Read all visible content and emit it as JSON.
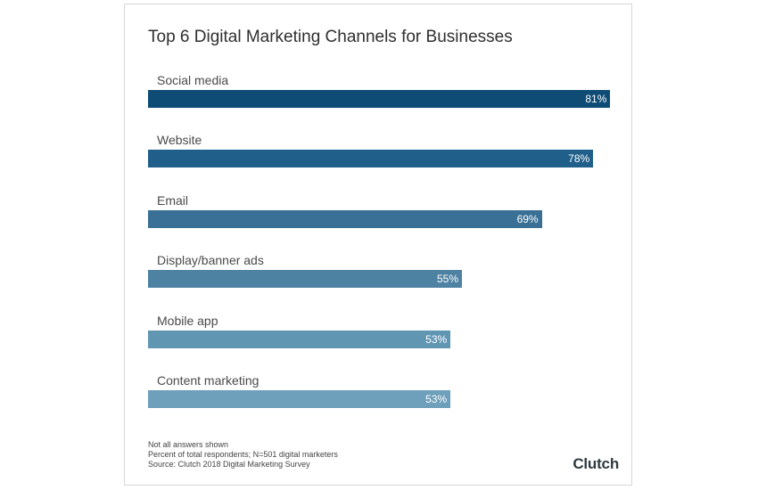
{
  "chart_data": {
    "type": "bar",
    "orientation": "horizontal",
    "title": "Top 6 Digital Marketing Channels for Businesses",
    "categories": [
      "Social media",
      "Website",
      "Email",
      "Display/banner ads",
      "Mobile app",
      "Content marketing"
    ],
    "values": [
      81,
      78,
      69,
      55,
      53,
      53
    ],
    "value_labels": [
      "81%",
      "78%",
      "69%",
      "55%",
      "53%",
      "53%"
    ],
    "xlim": [
      0,
      100
    ],
    "grid": false,
    "legend": "none",
    "colors": [
      "#0f4c75",
      "#1f5f8a",
      "#3a7095",
      "#4e82a3",
      "#6196b3",
      "#6e9fbb"
    ]
  },
  "footnotes": [
    "Not all answers shown",
    "Percent of total respondents; N=501 digital marketers",
    "Source: Clutch 2018 Digital Marketing Survey"
  ],
  "logo_text": "Clutch"
}
